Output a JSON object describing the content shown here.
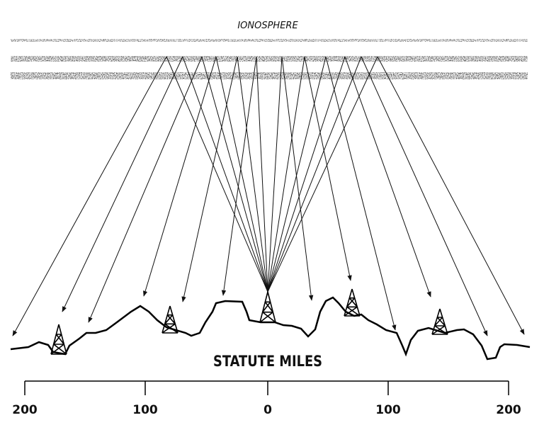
{
  "header": {
    "title": "IONOSPHERE"
  },
  "scale": {
    "title": "STATUTE MILES",
    "labels": [
      "200",
      "100",
      "0",
      "100",
      "200"
    ]
  }
}
